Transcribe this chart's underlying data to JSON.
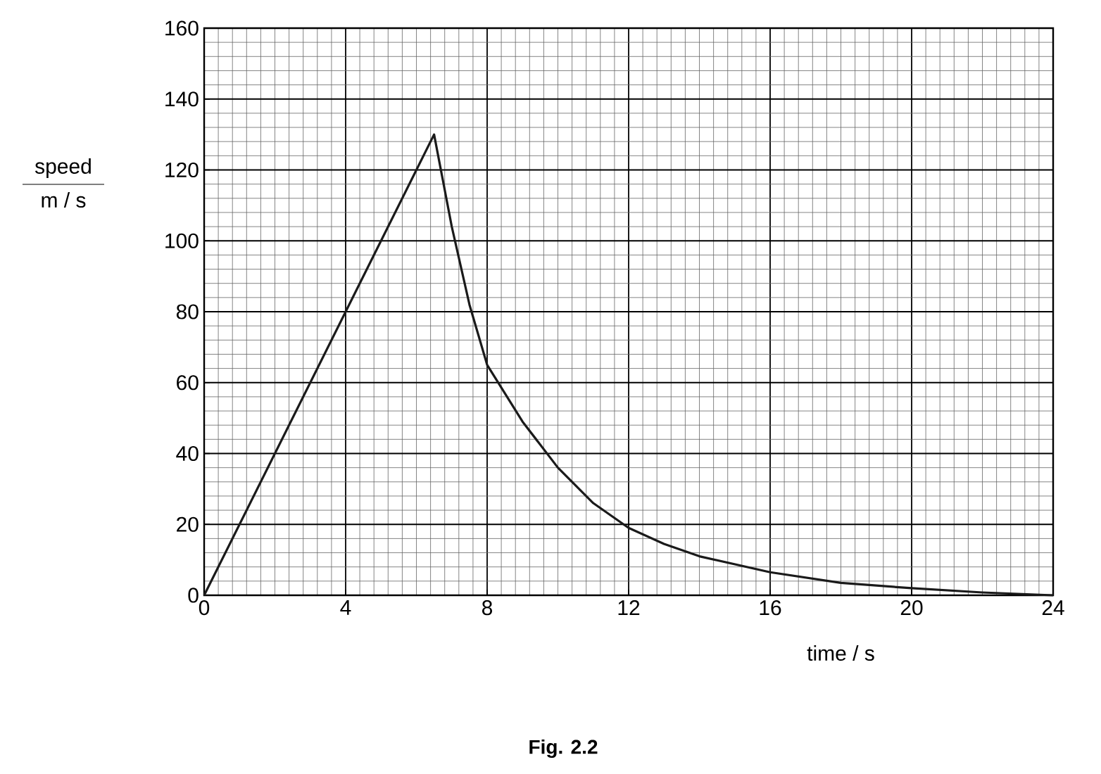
{
  "chart_data": {
    "type": "line",
    "ylabel": "speed",
    "xlabel": "time / s",
    "annotations": [
      "m / s",
      "Fig. 2.2"
    ],
    "xlim": [
      0,
      24
    ],
    "ylim": [
      0,
      160
    ],
    "xticks": [
      0,
      4,
      8,
      12,
      16,
      20,
      24
    ],
    "yticks": [
      0,
      20,
      40,
      60,
      80,
      100,
      120,
      140,
      160
    ],
    "grid": true,
    "series": [
      {
        "color": "#1a1a1a",
        "x": [
          0,
          6.5,
          7,
          7.5,
          8,
          9,
          10,
          11,
          12,
          13,
          14,
          16,
          18,
          20,
          22,
          24
        ],
        "values": [
          0,
          130,
          104,
          82,
          65,
          49,
          36,
          26,
          19,
          14.5,
          11,
          6.5,
          3.5,
          2,
          0.8,
          0
        ]
      }
    ]
  }
}
